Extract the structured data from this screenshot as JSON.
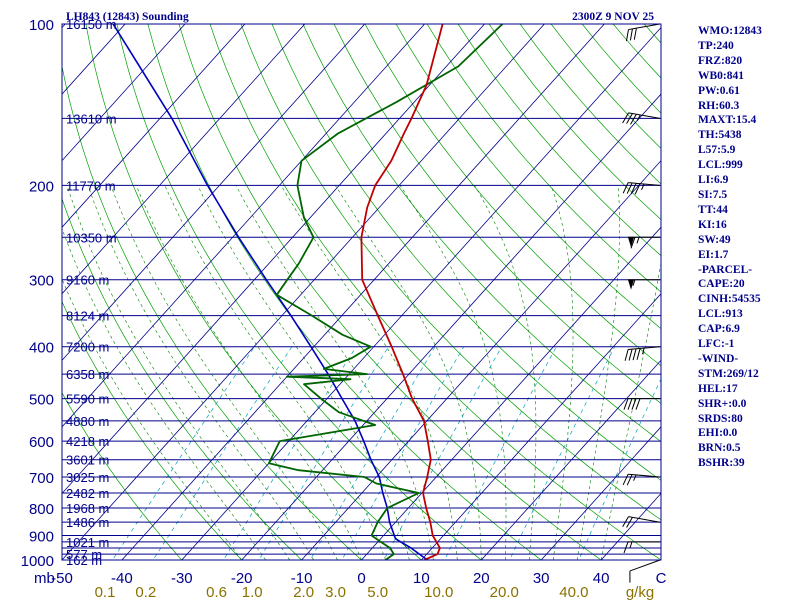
{
  "header": {
    "station": "LH843 (12843) Sounding",
    "time": "2300Z  9 NOV 25"
  },
  "indices": [
    "WMO:12843",
    "TP:240",
    "FRZ:820",
    "WB0:841",
    "PW:0.61",
    "RH:60.3",
    "MAXT:15.4",
    "TH:5438",
    "L57:5.9",
    "LCL:999",
    "LI:6.9",
    "SI:7.5",
    "TT:44",
    "KI:16",
    "SW:49",
    "EI:1.7",
    "-PARCEL-",
    "CAPE:20",
    "CINH:54535",
    "LCL:913",
    "CAP:6.9",
    "LFC:-1",
    "-WIND-",
    "STM:269/12",
    "HEL:17",
    "SHR+:0.0",
    "SRDS:80",
    "EHI:0.0",
    "BRN:0.5",
    "BSHR:39"
  ],
  "colors": {
    "isobar": "#00008b",
    "isotherm": "#00008b",
    "dry_adiabat": "#00a000",
    "moist_adiabat": "#008000",
    "mixing_ratio": "#00a0c0",
    "temperature": "#c00000",
    "dewpoint": "#006400",
    "parcel": "#0000c0",
    "wind": "#000000",
    "label": "#00008b",
    "mixing_label": "#8b7000"
  },
  "chart_data": {
    "type": "skew-t",
    "pressure_range_hpa": [
      1000,
      100
    ],
    "temperature_range_c": [
      -50,
      50
    ],
    "pressure_unit_label": "mb",
    "mixing_ratio_unit_label": "g/kg",
    "pressure_ticks": [
      {
        "p": 1000,
        "label": "1000"
      },
      {
        "p": 900,
        "label": "900"
      },
      {
        "p": 800,
        "label": "800"
      },
      {
        "p": 700,
        "label": "700"
      },
      {
        "p": 600,
        "label": "600"
      },
      {
        "p": 500,
        "label": "500"
      },
      {
        "p": 400,
        "label": "400"
      },
      {
        "p": 300,
        "label": "300"
      },
      {
        "p": 200,
        "label": "200"
      },
      {
        "p": 100,
        "label": "100"
      }
    ],
    "temperature_ticks": [
      {
        "t": -50,
        "label": "-50"
      },
      {
        "t": -40,
        "label": "-40"
      },
      {
        "t": -30,
        "label": "-30"
      },
      {
        "t": -20,
        "label": "-20"
      },
      {
        "t": -10,
        "label": "-10"
      },
      {
        "t": 0,
        "label": "0"
      },
      {
        "t": 10,
        "label": "10"
      },
      {
        "t": 20,
        "label": "20"
      },
      {
        "t": 30,
        "label": "30"
      },
      {
        "t": 40,
        "label": "40"
      }
    ],
    "temperature_end_tick": "C",
    "mixing_ratio_labels": [
      "0.1",
      "0.2",
      "0.6",
      "1.0",
      "2.0",
      "3.0",
      "5.0",
      "10.0",
      "20.0",
      "40.0"
    ],
    "height_labels": [
      {
        "p": 1000,
        "label": "162 m"
      },
      {
        "p": 975,
        "label": "577 m"
      },
      {
        "p": 925,
        "label": "1021 m"
      },
      {
        "p": 850,
        "label": "1486 m"
      },
      {
        "p": 800,
        "label": "1968 m"
      },
      {
        "p": 750,
        "label": "2482 m"
      },
      {
        "p": 700,
        "label": "3025 m"
      },
      {
        "p": 650,
        "label": "3601 m"
      },
      {
        "p": 600,
        "label": "4218 m"
      },
      {
        "p": 550,
        "label": "4880 m"
      },
      {
        "p": 500,
        "label": "5590 m"
      },
      {
        "p": 450,
        "label": "6358 m"
      },
      {
        "p": 400,
        "label": "7200 m"
      },
      {
        "p": 350,
        "label": "8124 m"
      },
      {
        "p": 300,
        "label": "9160 m"
      },
      {
        "p": 250,
        "label": "10350 m"
      },
      {
        "p": 200,
        "label": "11770 m"
      },
      {
        "p": 150,
        "label": "13610 m"
      },
      {
        "p": 100,
        "label": "16150 m"
      }
    ],
    "temperature_profile": [
      {
        "p": 1000,
        "t": 10.5
      },
      {
        "p": 975,
        "t": 11.8
      },
      {
        "p": 950,
        "t": 11.3
      },
      {
        "p": 925,
        "t": 9.8
      },
      {
        "p": 900,
        "t": 8.2
      },
      {
        "p": 850,
        "t": 5.8
      },
      {
        "p": 800,
        "t": 3.0
      },
      {
        "p": 750,
        "t": 0.2
      },
      {
        "p": 700,
        "t": -1.5
      },
      {
        "p": 650,
        "t": -3.5
      },
      {
        "p": 600,
        "t": -6.8
      },
      {
        "p": 550,
        "t": -10.5
      },
      {
        "p": 500,
        "t": -15.8
      },
      {
        "p": 450,
        "t": -21.0
      },
      {
        "p": 400,
        "t": -27.0
      },
      {
        "p": 350,
        "t": -34.0
      },
      {
        "p": 300,
        "t": -42.0
      },
      {
        "p": 250,
        "t": -48.5
      },
      {
        "p": 220,
        "t": -52.0
      },
      {
        "p": 200,
        "t": -54.0
      },
      {
        "p": 180,
        "t": -55.0
      },
      {
        "p": 160,
        "t": -57.0
      },
      {
        "p": 150,
        "t": -58.0
      },
      {
        "p": 130,
        "t": -60.5
      },
      {
        "p": 100,
        "t": -67.0
      }
    ],
    "dewpoint_profile": [
      {
        "p": 1000,
        "td": 4.0
      },
      {
        "p": 975,
        "td": 4.5
      },
      {
        "p": 950,
        "td": 3.0
      },
      {
        "p": 925,
        "td": 0.5
      },
      {
        "p": 900,
        "td": -2.0
      },
      {
        "p": 850,
        "td": -3.0
      },
      {
        "p": 800,
        "td": -3.5
      },
      {
        "p": 750,
        "td": -0.5
      },
      {
        "p": 720,
        "td": -9.0
      },
      {
        "p": 700,
        "td": -12.0
      },
      {
        "p": 680,
        "td": -24.0
      },
      {
        "p": 660,
        "td": -30.0
      },
      {
        "p": 620,
        "td": -31.0
      },
      {
        "p": 600,
        "td": -31.5
      },
      {
        "p": 560,
        "td": -18.0
      },
      {
        "p": 530,
        "td": -26.0
      },
      {
        "p": 500,
        "td": -31.0
      },
      {
        "p": 470,
        "td": -36.0
      },
      {
        "p": 460,
        "td": -29.0
      },
      {
        "p": 455,
        "td": -40.0
      },
      {
        "p": 450,
        "td": -27.0
      },
      {
        "p": 440,
        "td": -35.0
      },
      {
        "p": 420,
        "td": -32.0
      },
      {
        "p": 400,
        "td": -30.5
      },
      {
        "p": 380,
        "td": -37.0
      },
      {
        "p": 350,
        "td": -45.0
      },
      {
        "p": 320,
        "td": -54.0
      },
      {
        "p": 300,
        "td": -54.5
      },
      {
        "p": 280,
        "td": -55.0
      },
      {
        "p": 250,
        "td": -56.5
      },
      {
        "p": 230,
        "td": -61.0
      },
      {
        "p": 200,
        "td": -67.0
      },
      {
        "p": 180,
        "td": -70.0
      },
      {
        "p": 160,
        "td": -68.0
      },
      {
        "p": 140,
        "td": -63.0
      },
      {
        "p": 120,
        "td": -58.0
      },
      {
        "p": 100,
        "td": -57.0
      }
    ],
    "parcel_profile": [
      {
        "p": 1000,
        "t": 11.0
      },
      {
        "p": 950,
        "t": 6.5
      },
      {
        "p": 913,
        "t": 2.5
      },
      {
        "p": 850,
        "t": -1.0
      },
      {
        "p": 800,
        "t": -3.5
      },
      {
        "p": 750,
        "t": -6.5
      },
      {
        "p": 700,
        "t": -9.5
      },
      {
        "p": 650,
        "t": -13.5
      },
      {
        "p": 600,
        "t": -17.5
      },
      {
        "p": 550,
        "t": -22.0
      },
      {
        "p": 500,
        "t": -27.5
      },
      {
        "p": 450,
        "t": -33.5
      },
      {
        "p": 400,
        "t": -40.5
      },
      {
        "p": 350,
        "t": -48.5
      },
      {
        "p": 300,
        "t": -58.0
      },
      {
        "p": 250,
        "t": -69.0
      },
      {
        "p": 200,
        "t": -82.0
      },
      {
        "p": 150,
        "t": -98.0
      },
      {
        "p": 100,
        "t": -122.0
      }
    ],
    "wind_barbs": [
      {
        "p": 1000,
        "dir": 250,
        "spd": 10
      },
      {
        "p": 925,
        "dir": 270,
        "spd": 15
      },
      {
        "p": 850,
        "dir": 280,
        "spd": 20
      },
      {
        "p": 700,
        "dir": 275,
        "spd": 25
      },
      {
        "p": 500,
        "dir": 270,
        "spd": 40
      },
      {
        "p": 400,
        "dir": 265,
        "spd": 45
      },
      {
        "p": 300,
        "dir": 270,
        "spd": 55
      },
      {
        "p": 250,
        "dir": 270,
        "spd": 65
      },
      {
        "p": 200,
        "dir": 275,
        "spd": 45
      },
      {
        "p": 150,
        "dir": 280,
        "spd": 35
      },
      {
        "p": 100,
        "dir": 260,
        "spd": 30
      }
    ]
  }
}
